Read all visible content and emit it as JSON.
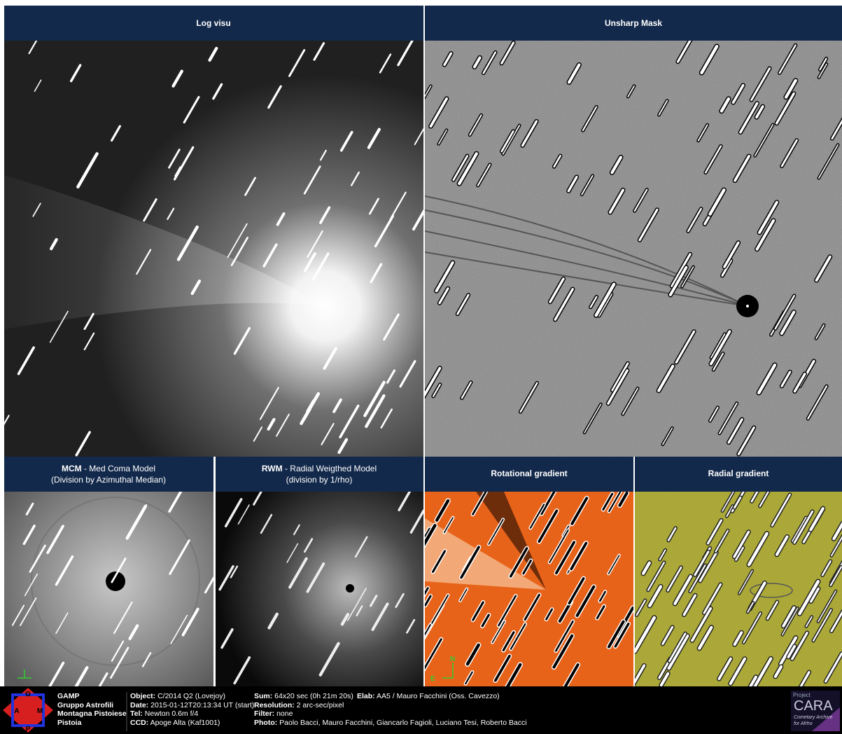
{
  "panels": [
    {
      "title": "Log visu"
    },
    {
      "title": "Unsharp Mask"
    },
    {
      "title_bold": "MCM",
      "title_rest": " - Med Coma Model",
      "subtitle": "(Division by Azimuthal Median)"
    },
    {
      "title_bold": "RWM",
      "title_rest": " - Radial Weigthed Model",
      "subtitle": "(division by 1/rho)"
    },
    {
      "title": "Rotational gradient",
      "compass": [
        "N",
        "E"
      ]
    },
    {
      "title": "Radial gradient"
    }
  ],
  "footer": {
    "group": [
      "GAMP",
      "Gruppo Astrofili",
      "Montagna Pistoiese",
      "Pistoia"
    ],
    "col1": [
      {
        "label": "Object:",
        "value": " C/2014 Q2 (Lovejoy)"
      },
      {
        "label": "Date:",
        "value": " 2015-01-12T20:13:34 UT (start)"
      },
      {
        "label": "Tel:",
        "value": " Newton 0.6m f/4"
      },
      {
        "label": "CCD:",
        "value": " Apoge Alta (Kaf1001)"
      }
    ],
    "col2": [
      {
        "label": "Sum:",
        "value": " 64x20 sec (0h 21m 20s)"
      },
      {
        "label": "Resolution:",
        "value": " 2 arc-sec/pixel"
      },
      {
        "label": "Filter:",
        "value": " none"
      },
      {
        "label": "Photo:",
        "value": " Paolo Bacci, Mauro Facchini, Giancarlo Fagioli, Luciano Tesi, Roberto Bacci"
      }
    ],
    "elab": {
      "label": "Elab:",
      "value": " AA5 / Mauro Facchini (Oss. Cavezzo)"
    }
  },
  "logo": {
    "letters": [
      "G",
      "A",
      "M",
      "P"
    ]
  },
  "cara": {
    "project": "Project",
    "name": "CARA",
    "line1": "Cometary Archive",
    "line2": "for Afrho"
  }
}
